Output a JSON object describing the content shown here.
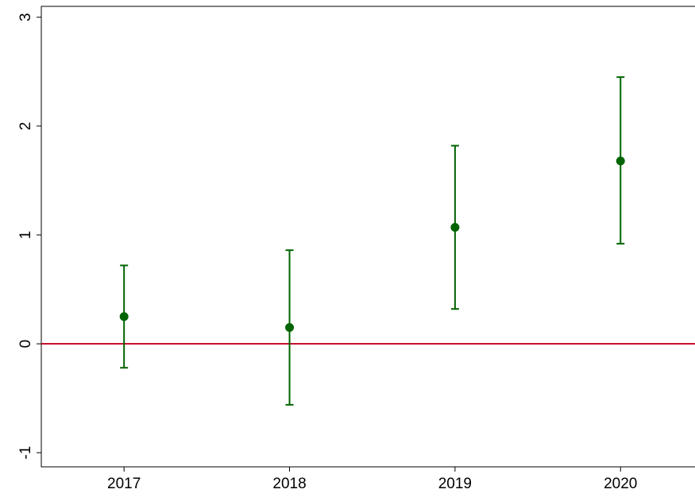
{
  "chart_data": {
    "type": "errorbar",
    "x": [
      2017,
      2018,
      2019,
      2020
    ],
    "values": [
      0.25,
      0.15,
      1.07,
      1.68
    ],
    "lower": [
      -0.22,
      -0.56,
      0.32,
      0.92
    ],
    "upper": [
      0.72,
      0.86,
      1.82,
      2.45
    ],
    "color": "#006400",
    "xlim": [
      2016.5,
      2020.45
    ],
    "xticks": [
      2017,
      2018,
      2019,
      2020
    ],
    "ylim": [
      -1.13,
      3.1
    ],
    "yticks": [
      -1,
      0,
      1,
      2,
      3
    ],
    "hline": 0,
    "hline_color": "#c8102e",
    "grid": false
  }
}
